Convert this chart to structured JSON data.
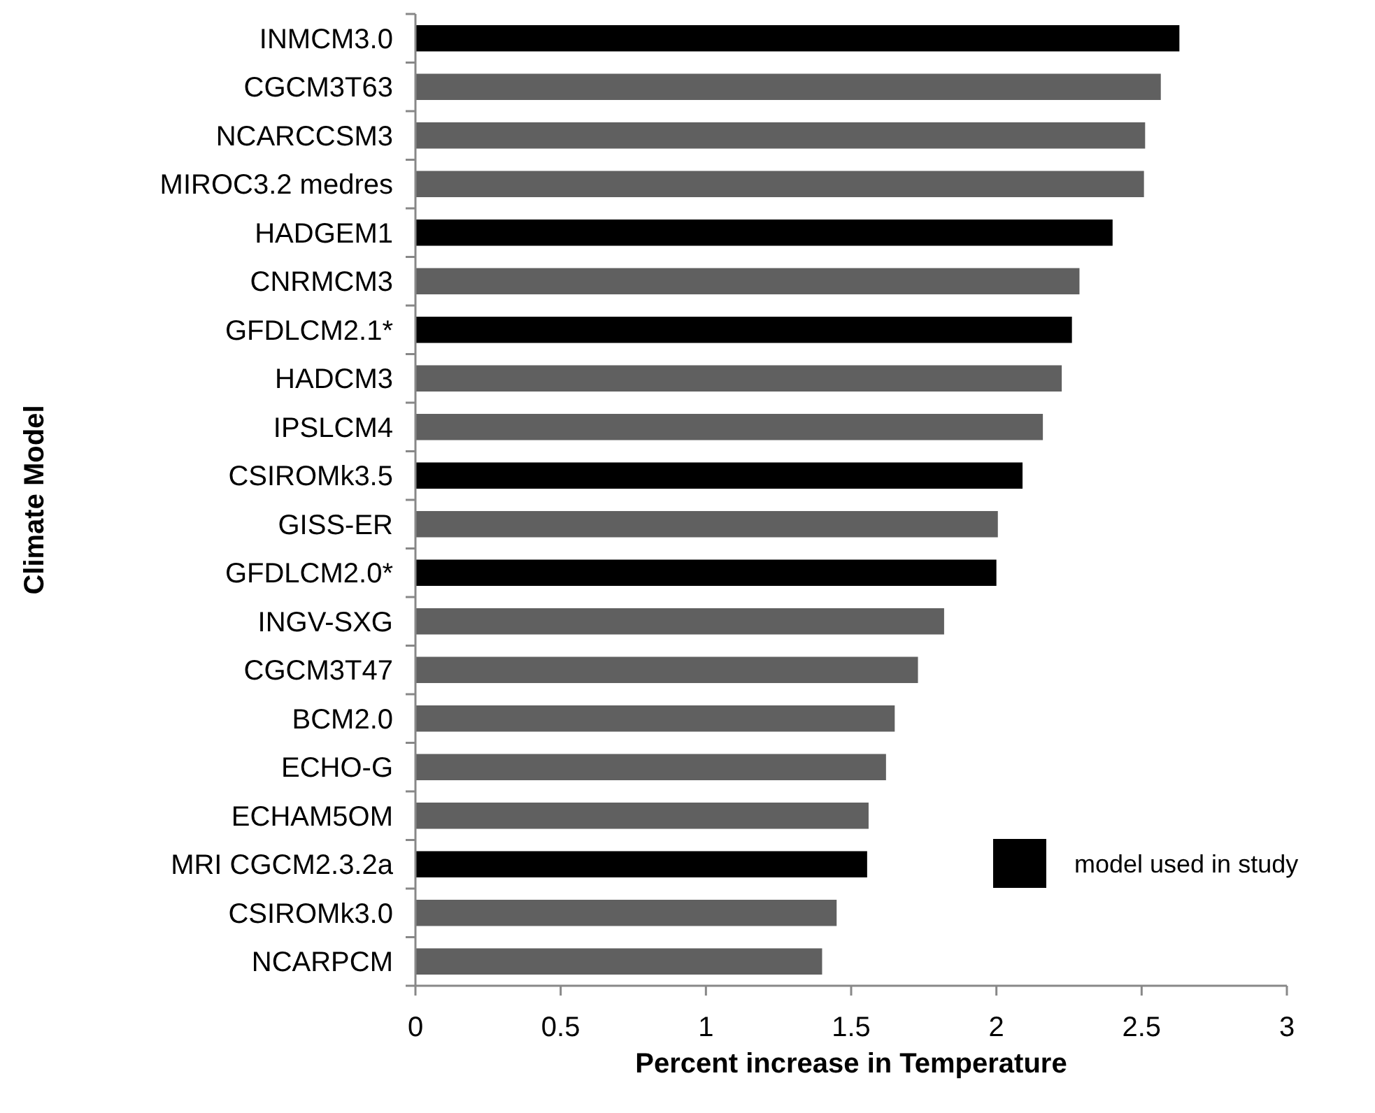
{
  "chart_data": {
    "type": "bar",
    "orientation": "horizontal",
    "stacked": true,
    "xlabel": "Percent increase in Temperature",
    "ylabel": "Climate Model",
    "categories": [
      "INMCM3.0",
      "CGCM3T63",
      "NCARCCSM3",
      "MIROC3.2 medres",
      "HADGEM1",
      "CNRMCM3",
      "GFDLCM2.1*",
      "HADCM3",
      "IPSLCM4",
      "CSIROMk3.5",
      "GISS-ER",
      "GFDLCM2.0*",
      "INGV-SXG",
      "CGCM3T47",
      "BCM2.0",
      "ECHO-G",
      "ECHAM5OM",
      "MRI CGCM2.3.2a",
      "CSIROMk3.0",
      "NCARPCM"
    ],
    "series": [
      {
        "name": "model used in study",
        "color": "#000000",
        "values": [
          2.63,
          null,
          null,
          null,
          2.4,
          null,
          2.26,
          null,
          null,
          2.09,
          null,
          2.0,
          null,
          null,
          null,
          null,
          null,
          1.555,
          null,
          null
        ]
      },
      {
        "color": "#606060",
        "values": [
          null,
          2.566,
          2.512,
          2.508,
          null,
          2.286,
          null,
          2.225,
          2.16,
          null,
          2.005,
          null,
          1.82,
          1.73,
          1.65,
          1.62,
          1.56,
          null,
          1.45,
          1.4
        ]
      }
    ],
    "xlim": [
      0,
      3
    ],
    "xticks": [
      0,
      0.5,
      1,
      1.5,
      2,
      2.5,
      3
    ],
    "legend": "bottom right"
  }
}
